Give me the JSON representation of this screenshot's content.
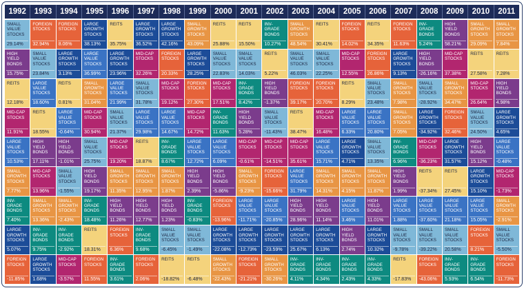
{
  "chart_data": {
    "type": "table",
    "years": [
      "1992",
      "1993",
      "1994",
      "1995",
      "1996",
      "1997",
      "1998",
      "1999",
      "2000",
      "2001",
      "2002",
      "2003",
      "2004",
      "2005",
      "2006",
      "2007",
      "2008",
      "2009",
      "2010",
      "2011"
    ],
    "colors": {
      "SMALL VALUE STOCKS": "#7fb8d8",
      "FOREIGN STOCKS": "#e6633a",
      "LARGE GROWTH STOCKS": "#1c4c98",
      "REITs": "#f4d37c",
      "HIGH YIELD BONDS": "#7b3c8c",
      "SMALL GROWTH STOCKS": "#e89544",
      "MID-CAP STOCKS": "#b2266f",
      "INV-GRADE BONDS": "#0d8a80",
      "LARGE VALUE STOCKS": "#3a73c4"
    },
    "light_text": [
      "#f4d37c",
      "#7fb8d8"
    ],
    "columns": [
      [
        "SMALL VALUE STOCKS|29.14%",
        "HIGH YIELD BONDS|15.75%",
        "REITs|12.18%",
        "MID-CAP STOCKS|11.91%",
        "LARGE VALUE STOCKS|10.53%",
        "SMALL GROWTH STOCKS|7.77%",
        "INV-GRADE BONDS|7.40%",
        "LARGE GROWTH STOCKS|5.07%",
        "FOREIGN STOCKS|-11.85%"
      ],
      [
        "FOREIGN STOCKS|32.94%",
        "SMALL VALUE STOCKS|23.84%",
        "LARGE VALUE STOCKS|18.60%",
        "REITs|18.55%",
        "HIGH YIELD BONDS|17.11%",
        "MID-CAP STOCKS|13.96%",
        "SMALL GROWTH STOCKS|13.36%",
        "INV-GRADE BONDS|9.75%",
        "LARGE GROWTH STOCKS|1.68%"
      ],
      [
        "FOREIGN STOCKS|8.06%",
        "LARGE GROWTH STOCKS|3.13%",
        "REITs|0.81%",
        "LARGE VALUE STOCKS|-0.64%",
        "HIGH YIELD BONDS|-1.01%",
        "SMALL VALUE STOCKS|-1.55%",
        "SMALL GROWTH STOCKS|-2.43%",
        "INV-GRADE BONDS|-2.92%",
        "MID-CAP STOCKS|-3.57%"
      ],
      [
        "LARGE GROWTH STOCKS|38.13%",
        "LARGE VALUE STOCKS|36.99%",
        "SMALL GROWTH STOCKS|31.04%",
        "MID-CAP STOCKS|30.94%",
        "SMALL VALUE STOCKS|25.75%",
        "HIGH YIELD BONDS|19.17%",
        "INV-GRADE BONDS|18.48%",
        "REITs|18.31%",
        "FOREIGN STOCKS|11.55%"
      ],
      [
        "REITs|35.75%",
        "LARGE GROWTH STOCKS|23.96%",
        "LARGE VALUE STOCKS|21.99%",
        "SMALL VALUE STOCKS|21.37%",
        "MID-CAP STOCKS|19.20%",
        "SMALL GROWTH STOCKS|11.35%",
        "HIGH YIELD BONDS|11.26%",
        "FOREIGN STOCKS|6.36%",
        "INV-GRADE BONDS|3.61%"
      ],
      [
        "LARGE GROWTH STOCKS|36.52%",
        "MID-CAP STOCKS|32.26%",
        "SMALL VALUE STOCKS|31.78%",
        "LARGE VALUE STOCKS|29.98%",
        "REITs|18.87%",
        "SMALL GROWTH STOCKS|12.95%",
        "HIGH YIELD BONDS|12.77%",
        "INV-GRADE BONDS|9.68%",
        "FOREIGN STOCKS|2.06%"
      ],
      [
        "LARGE GROWTH STOCKS|42.16%",
        "FOREIGN STOCKS|20.33%",
        "MID-CAP STOCKS|19.12%",
        "LARGE VALUE STOCKS|14.67%",
        "INV-GRADE BONDS|8.67%",
        "SMALL GROWTH STOCKS|1.87%",
        "HIGH YIELD BONDS|1.23%",
        "SMALL VALUE STOCKS|-6.45%",
        "REITs|-18.82%"
      ],
      [
        "SMALL GROWTH STOCKS|43.09%",
        "LARGE GROWTH STOCKS|28.25%",
        "FOREIGN STOCKS|27.30%",
        "MID-CAP STOCKS|14.72%",
        "LARGE VALUE STOCKS|12.72%",
        "HIGH YIELD BONDS|2.39%",
        "INV-GRADE BONDS|-0.83%",
        "SMALL VALUE STOCKS|-1.49%",
        "REITs|-6.48%"
      ],
      [
        "REITs|25.88%",
        "SMALL VALUE STOCKS|22.83%",
        "MID-CAP STOCKS|17.51%",
        "INV-GRADE BONDS|11.63%",
        "LARGE VALUE STOCKS|6.09%",
        "HIGH YIELD BONDS|-5.86%",
        "FOREIGN STOCKS|-13.96%",
        "LARGE GROWTH STOCKS|-22.08%",
        "SMALL GROWTH STOCKS|-22.43%"
      ],
      [
        "REITs|15.50%",
        "SMALL VALUE STOCKS|14.03%",
        "INV-GRADE BONDS|8.42%",
        "HIGH YIELD BONDS|5.28%",
        "MID-CAP STOCKS|-0.61%",
        "SMALL GROWTH STOCKS|-9.23%",
        "LARGE VALUE STOCKS|-11.71%",
        "LARGE GROWTH STOCKS|-12.73%",
        "FOREIGN STOCKS|-21.21%"
      ],
      [
        "INV-GRADE BONDS|10.27%",
        "REITs|5.22%",
        "HIGH YIELD BONDS|-1.37%",
        "SMALL VALUE STOCKS|-11.43%",
        "MID-CAP STOCKS|-14.51%",
        "FOREIGN STOCKS|-15.66%",
        "LARGE VALUE STOCKS|-20.85%",
        "LARGE GROWTH STOCKS|-23.59%",
        "SMALL GROWTH STOCKS|-30.26%"
      ],
      [
        "SMALL GROWTH STOCKS|48.54%",
        "SMALL VALUE STOCKS|46.03%",
        "FOREIGN STOCKS|39.17%",
        "REITs|38.47%",
        "MID-CAP STOCKS|35.61%",
        "LARGE VALUE STOCKS|31.79%",
        "HIGH YIELD BONDS|28.96%",
        "LARGE GROWTH STOCKS|25.67%",
        "INV-GRADE BONDS|4.11%"
      ],
      [
        "REITs|30.41%",
        "SMALL VALUE STOCKS|22.25%",
        "FOREIGN STOCKS|20.70%",
        "MID-CAP STOCKS|16.48%",
        "LARGE VALUE STOCKS|15.71%",
        "SMALL GROWTH STOCKS|14.31%",
        "HIGH YIELD BONDS|11.14%",
        "LARGE GROWTH STOCKS|6.13%",
        "INV-GRADE BONDS|4.34%"
      ],
      [
        "FOREIGN STOCKS|14.02%",
        "MID-CAP STOCKS|12.55%",
        "REITs|8.29%",
        "LARGE VALUE STOCKS|6.33%",
        "LARGE GROWTH STOCKS|4.71%",
        "SMALL GROWTH STOCKS|4.15%",
        "LARGE VALUE STOCKS|3.46%",
        "HIGH YIELD BONDS|2.74%",
        "INV-GRADE BONDS|2.43%"
      ],
      [
        "REITs|34.35%",
        "FOREIGN STOCKS|26.86%",
        "SMALL VALUE STOCKS|23.48%",
        "LARGE VALUE STOCKS|20.80%",
        "SMALL VALUE STOCKS|13.35%",
        "SMALL GROWTH STOCKS|11.87%",
        "HIGH YIELD BONDS|11.01%",
        "LARGE GROWTH STOCKS|10.32%",
        "INV-GRADE BONDS|4.33%"
      ],
      [
        "FOREIGN STOCKS|11.63%",
        "LARGE GROWTH STOCKS|9.13%",
        "SMALL GROWTH STOCKS|7.98%",
        "SMALL GROWTH STOCKS|7.05%",
        "INV-GRADE BONDS|6.96%",
        "HIGH YIELD BONDS|1.99%",
        "LARGE VALUE STOCKS|1.88%",
        "SMALL VALUE STOCKS|-9.78%",
        "REITs|-17.83%"
      ],
      [
        "INV-GRADE BONDS|5.24%",
        "HIGH YIELD BONDS|-26.16%",
        "SMALL VALUE STOCKS|-28.92%",
        "LARGE GROWTH STOCKS|-34.92%",
        "MID-CAP STOCKS|-36.23%",
        "REITs|-37.34%",
        "LARGE VALUE STOCKS|-37.60%",
        "SMALL VALUE STOCKS|-39.22%",
        "FOREIGN STOCKS|-43.06%"
      ],
      [
        "HIGH YIELD BONDS|58.21%",
        "MID-CAP STOCKS|37.38%",
        "SMALL GROWTH STOCKS|34.47%",
        "FOREIGN STOCKS|32.46%",
        "LARGE GROWTH STOCKS|31.57%",
        "REITs|27.45%",
        "LARGE VALUE STOCKS|21.18%",
        "SMALL VALUE STOCKS|20.58%",
        "INV-GRADE BONDS|5.93%"
      ],
      [
        "SMALL GROWTH STOCKS|29.09%",
        "REITs|27.58%",
        "MID-CAP STOCKS|26.64%",
        "SMALL VALUE STOCKS|24.50%",
        "HIGH YIELD BONDS|15.12%",
        "LARGE GROWTH STOCKS|15.10%",
        "LARGE VALUE STOCKS|15.05%",
        "FOREIGN STOCKS|8.21%",
        "INV-GRADE BONDS|6.54%"
      ],
      [
        "SMALL GROWTH STOCKS|7.84%",
        "REITs|7.28%",
        "HIGH YIELD BONDS|4.98%",
        "LARGE GROWTH STOCKS|4.65%",
        "LARGE VALUE STOCKS|-0.48%",
        "MID-CAP STOCKS|-1.73%",
        "SMALL GROWTH STOCKS|-2.91%",
        "SMALL VALUE STOCKS|-5.50%",
        "FOREIGN STOCKS|-11.73%"
      ]
    ]
  }
}
